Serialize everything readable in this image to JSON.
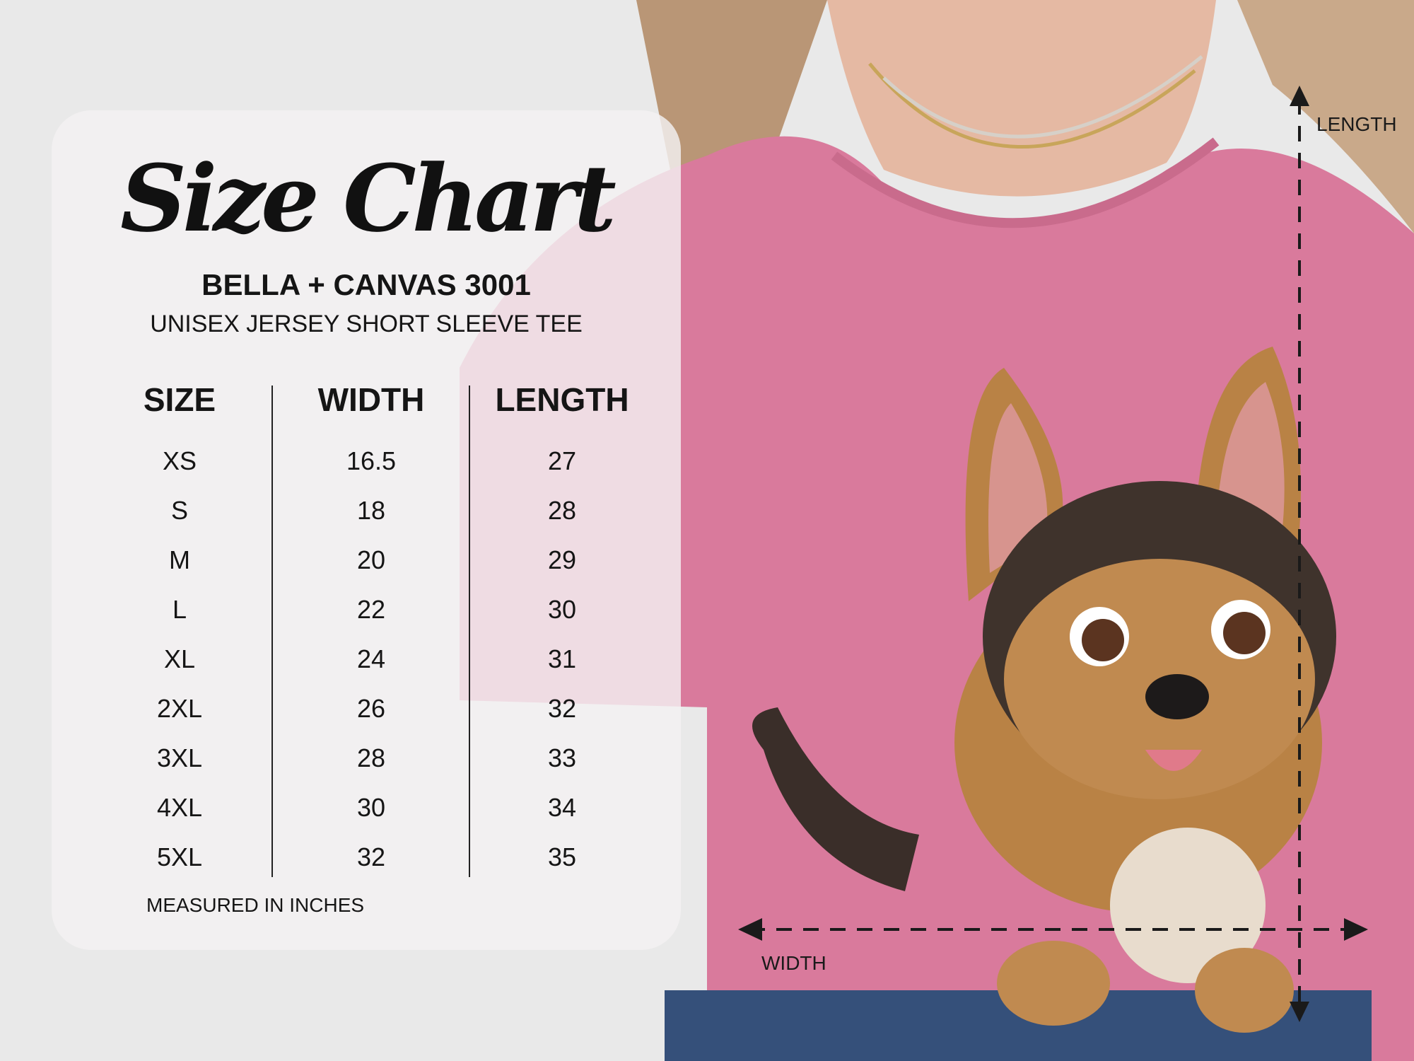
{
  "title": "Size Chart",
  "brand": "BELLA + CANVAS 3001",
  "subtitle": "UNISEX JERSEY SHORT SLEEVE TEE",
  "table": {
    "headers": [
      "SIZE",
      "WIDTH",
      "LENGTH"
    ],
    "rows": [
      [
        "XS",
        "16.5",
        "27"
      ],
      [
        "S",
        "18",
        "28"
      ],
      [
        "M",
        "20",
        "29"
      ],
      [
        "L",
        "22",
        "30"
      ],
      [
        "XL",
        "24",
        "31"
      ],
      [
        "2XL",
        "26",
        "32"
      ],
      [
        "3XL",
        "28",
        "33"
      ],
      [
        "4XL",
        "30",
        "34"
      ],
      [
        "5XL",
        "32",
        "35"
      ]
    ]
  },
  "note": "MEASURED IN INCHES",
  "dimensions": {
    "length_label": "LENGTH",
    "width_label": "WIDTH"
  },
  "colors": {
    "shirt": "#d97a9c",
    "background": "#e9e9e9",
    "text": "#151515"
  }
}
